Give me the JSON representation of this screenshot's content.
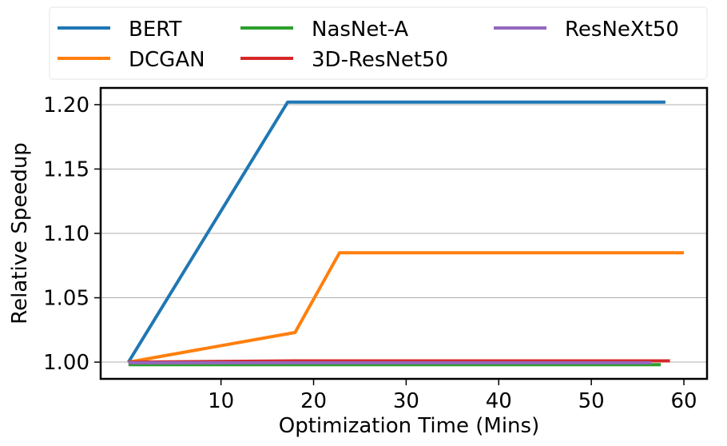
{
  "chart_data": {
    "type": "line",
    "xlabel": "Optimization Time (Mins)",
    "ylabel": "Relative Speedup",
    "xlim": [
      -3,
      62.5
    ],
    "ylim": [
      0.987,
      1.213
    ],
    "xticks": [
      10,
      20,
      30,
      40,
      50,
      60
    ],
    "xtick_labels": [
      "10",
      "20",
      "30",
      "40",
      "50",
      "60"
    ],
    "yticks": [
      1.0,
      1.05,
      1.1,
      1.15,
      1.2
    ],
    "ytick_labels": [
      "1.00",
      "1.05",
      "1.10",
      "1.15",
      "1.20"
    ],
    "grid": "horizontal",
    "legend_position": "top",
    "series": [
      {
        "name": "BERT",
        "color": "#1f77b4",
        "x": [
          0,
          17.2,
          58
        ],
        "y": [
          1.0,
          1.202,
          1.202
        ]
      },
      {
        "name": "DCGAN",
        "color": "#ff7f0e",
        "x": [
          0,
          18,
          22.8,
          60
        ],
        "y": [
          1.0,
          1.023,
          1.085,
          1.085
        ]
      },
      {
        "name": "NasNet-A",
        "color": "#2ca02c",
        "x": [
          0,
          57.5
        ],
        "y": [
          0.998,
          0.998
        ]
      },
      {
        "name": "3D-ResNet50",
        "color": "#d62728",
        "x": [
          0,
          18,
          58.5
        ],
        "y": [
          1.0,
          1.001,
          1.001
        ]
      },
      {
        "name": "ResNeXt50",
        "color": "#9467bd",
        "x": [
          0,
          56.5
        ],
        "y": [
          0.9995,
          0.9995
        ]
      }
    ]
  }
}
